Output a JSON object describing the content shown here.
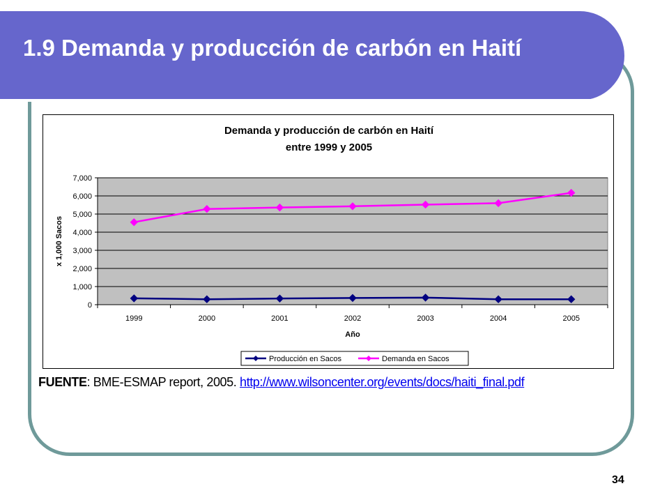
{
  "slide": {
    "title": "1.9 Demanda y producción de carbón en Haití",
    "source_label": "FUENTE",
    "source_text": ": BME-ESMAP report, 2005. ",
    "source_link": "http://www.wilsoncenter.org/events/docs/haiti_final.pdf",
    "page_number": "34"
  },
  "colors": {
    "title_band": "#6666cc",
    "frame_border": "#6f9a9a",
    "plot_area": "#c0c0c0",
    "series_produccion": "#000080",
    "series_demanda": "#ff00ff",
    "link": "#0000ee"
  },
  "chart_data": {
    "type": "line",
    "title": "Demanda y producción de carbón en Haití",
    "subtitle": "entre 1999 y 2005",
    "xlabel": "Año",
    "ylabel": "x 1,000 Sacos",
    "categories": [
      "1999",
      "2000",
      "2001",
      "2002",
      "2003",
      "2004",
      "2005"
    ],
    "ylim": [
      0,
      7000
    ],
    "yticks": [
      "0",
      "1,000",
      "2,000",
      "3,000",
      "4,000",
      "5,000",
      "6,000",
      "7,000"
    ],
    "grid": true,
    "legend_position": "bottom",
    "series": [
      {
        "name": "Producción en Sacos",
        "color": "#000080",
        "marker": "diamond",
        "values": [
          350,
          300,
          340,
          370,
          390,
          300,
          300
        ]
      },
      {
        "name": "Demanda en Sacos",
        "color": "#ff00ff",
        "marker": "diamond",
        "values": [
          4550,
          5280,
          5360,
          5430,
          5520,
          5600,
          6170
        ]
      }
    ]
  }
}
